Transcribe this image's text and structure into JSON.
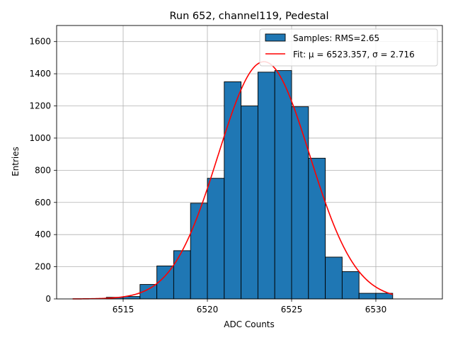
{
  "chart_data": {
    "type": "bar",
    "title": "Run 652, channel119, Pedestal",
    "xlabel": "ADC Counts",
    "ylabel": "Entries",
    "xlim": [
      6511.05,
      6533.95
    ],
    "ylim": [
      0,
      1700
    ],
    "xticks": [
      6515,
      6520,
      6525,
      6530
    ],
    "yticks": [
      0,
      200,
      400,
      600,
      800,
      1000,
      1200,
      1400,
      1600
    ],
    "grid": true,
    "legend_position": "top-right",
    "colors": {
      "bar_fill": "#1f77b4",
      "bar_edge": "#000000",
      "fit_line": "#ff0000",
      "grid": "#b0b0b0"
    },
    "histogram": {
      "name": "Samples: RMS=2.65",
      "bin_edges": [
        6514,
        6515,
        6516,
        6517,
        6518,
        6519,
        6520,
        6521,
        6522,
        6523,
        6524,
        6525,
        6526,
        6527,
        6528,
        6529,
        6530,
        6531
      ],
      "counts": [
        10,
        15,
        90,
        205,
        300,
        595,
        750,
        1350,
        1200,
        1410,
        1420,
        1195,
        875,
        260,
        170,
        35,
        35
      ]
    },
    "fit": {
      "name": "Fit: μ = 6523.357, σ = 2.716",
      "mu": 6523.357,
      "sigma": 2.716,
      "amplitude": 1475,
      "x_range": [
        6512,
        6531
      ]
    }
  }
}
